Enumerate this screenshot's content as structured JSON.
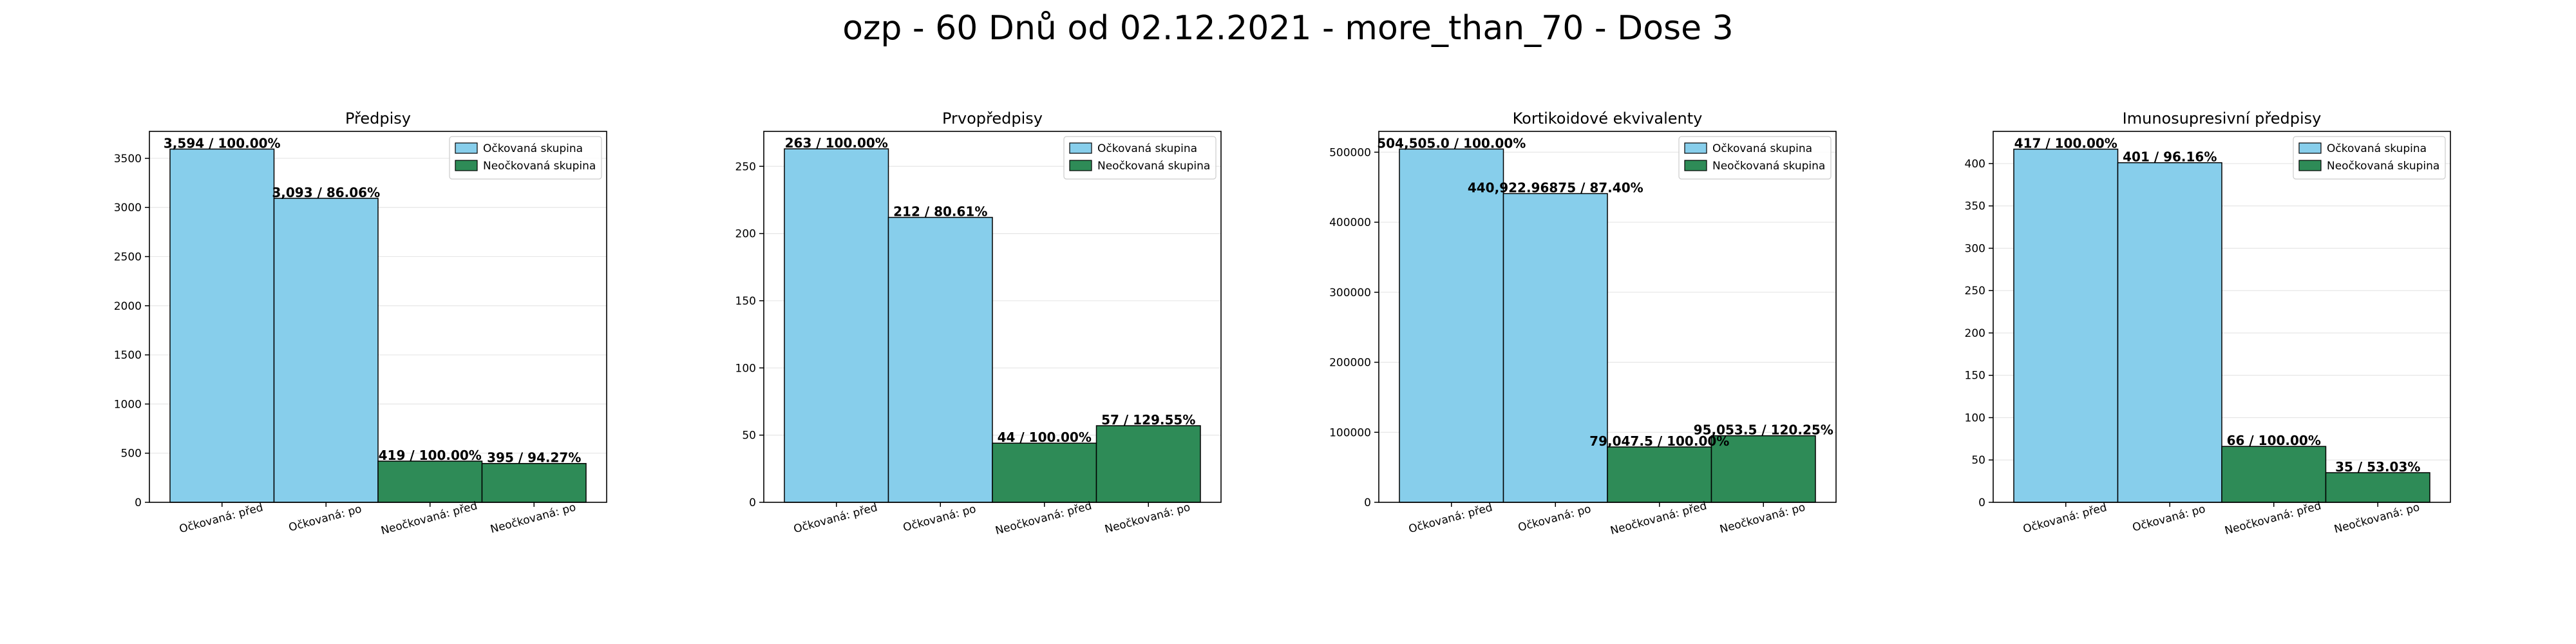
{
  "figure_title": "ozp - 60 Dnů od 02.12.2021 - more_than_70 - Dose 3",
  "colors": {
    "vaccinated": "#87CEEB",
    "unvaccinated": "#2E8B57",
    "edge": "#000000",
    "grid": "#e6e6e6"
  },
  "legend_labels": [
    "Očkovaná skupina",
    "Neočkovaná skupina"
  ],
  "chart_data": [
    {
      "type": "bar",
      "title": "Předpisy",
      "categories": [
        "Očkovaná: před",
        "Očkovaná: po",
        "Neočkovaná: před",
        "Neočkovaná: po"
      ],
      "values": [
        3594,
        3093,
        419,
        395
      ],
      "data_labels": [
        "3,594 / 100.00%",
        "3,093 / 86.06%",
        "419 / 100.00%",
        "395 / 94.27%"
      ],
      "series_index": [
        0,
        0,
        1,
        1
      ],
      "ylim": [
        0,
        3774
      ],
      "yticks": [
        0,
        500,
        1000,
        1500,
        2000,
        2500,
        3000,
        3500
      ],
      "ytick_labels": [
        "0",
        "500",
        "1000",
        "1500",
        "2000",
        "2500",
        "3000",
        "3500"
      ],
      "legend_position": "top-right",
      "grid": true
    },
    {
      "type": "bar",
      "title": "Prvopředpisy",
      "categories": [
        "Očkovaná: před",
        "Očkovaná: po",
        "Neočkovaná: před",
        "Neočkovaná: po"
      ],
      "values": [
        263,
        212,
        44,
        57
      ],
      "data_labels": [
        "263 / 100.00%",
        "212 / 80.61%",
        "44 / 100.00%",
        "57 / 129.55%"
      ],
      "series_index": [
        0,
        0,
        1,
        1
      ],
      "ylim": [
        0,
        276
      ],
      "yticks": [
        0,
        50,
        100,
        150,
        200,
        250
      ],
      "ytick_labels": [
        "0",
        "50",
        "100",
        "150",
        "200",
        "250"
      ],
      "legend_position": "top-right",
      "grid": true
    },
    {
      "type": "bar",
      "title": "Kortikoidové ekvivalenty",
      "categories": [
        "Očkovaná: před",
        "Očkovaná: po",
        "Neočkovaná: před",
        "Neočkovaná: po"
      ],
      "values": [
        504505.0,
        440922.96875,
        79047.5,
        95053.5
      ],
      "data_labels": [
        "504,505.0 / 100.00%",
        "440,922.96875 / 87.40%",
        "79,047.5 / 100.00%",
        "95,053.5 / 120.25%"
      ],
      "series_index": [
        0,
        0,
        1,
        1
      ],
      "ylim": [
        0,
        529730
      ],
      "yticks": [
        0,
        100000,
        200000,
        300000,
        400000,
        500000
      ],
      "ytick_labels": [
        "0",
        "100000",
        "200000",
        "300000",
        "400000",
        "500000"
      ],
      "legend_position": "top-right",
      "grid": true
    },
    {
      "type": "bar",
      "title": "Imunosupresivní předpisy",
      "categories": [
        "Očkovaná: před",
        "Očkovaná: po",
        "Neočkovaná: před",
        "Neočkovaná: po"
      ],
      "values": [
        417,
        401,
        66,
        35
      ],
      "data_labels": [
        "417 / 100.00%",
        "401 / 96.16%",
        "66 / 100.00%",
        "35 / 53.03%"
      ],
      "series_index": [
        0,
        0,
        1,
        1
      ],
      "ylim": [
        0,
        438
      ],
      "yticks": [
        0,
        50,
        100,
        150,
        200,
        250,
        300,
        350,
        400
      ],
      "ytick_labels": [
        "0",
        "50",
        "100",
        "150",
        "200",
        "250",
        "300",
        "350",
        "400"
      ],
      "legend_position": "top-right",
      "grid": true
    }
  ]
}
